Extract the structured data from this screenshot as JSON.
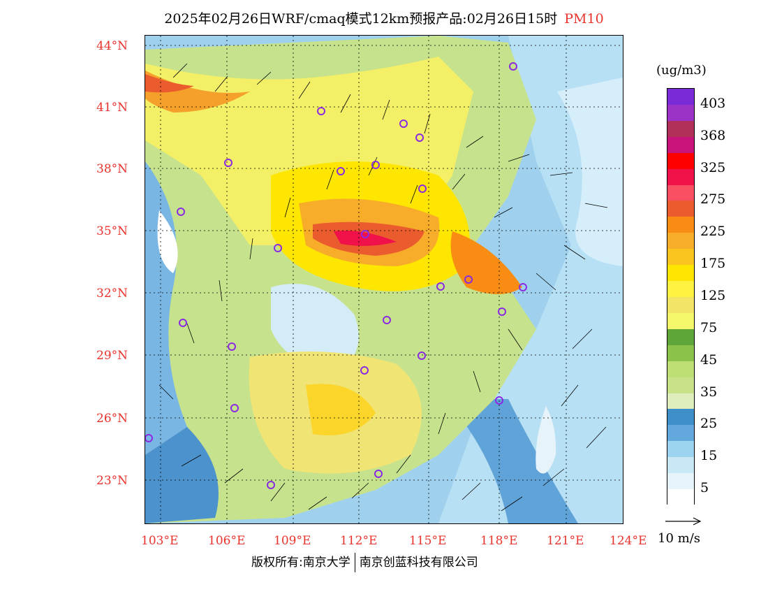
{
  "header": {
    "title": "2025年02月26日WRF/cmaq模式12km预报产品:02月26日15时",
    "variable": "PM10"
  },
  "map": {
    "lat_labels": [
      "44°N",
      "41°N",
      "38°N",
      "35°N",
      "32°N",
      "29°N",
      "26°N",
      "23°N"
    ],
    "lon_labels": [
      "103°E",
      "106°E",
      "109°E",
      "112°E",
      "115°E",
      "118°E",
      "121°E",
      "124°E"
    ],
    "city_marker_color": "#8a2be2",
    "city_markers_count": 25
  },
  "legend": {
    "unit": "(ug/m3)",
    "labels": [
      "403",
      "368",
      "325",
      "275",
      "225",
      "175",
      "125",
      "75",
      "45",
      "35",
      "25",
      "15",
      "5"
    ],
    "colors": [
      "#7a2ad6",
      "#9b33c9",
      "#b0305a",
      "#c8147a",
      "#ff0000",
      "#f0104a",
      "#fa4e63",
      "#ea5b2e",
      "#f98c12",
      "#f8ad2a",
      "#fbc520",
      "#fee600",
      "#fff240",
      "#f2e466",
      "#f5f76b",
      "#5fa63a",
      "#8bc34a",
      "#bddf73",
      "#c8e28a",
      "#deeebd",
      "#3e8fc7",
      "#62a8dc",
      "#9cd3f1",
      "#c9e8f6",
      "#e6f4fa",
      "#ffffff"
    ],
    "wind_ref_label": "10 m/s"
  },
  "footer": {
    "copyright_left": "版权所有:南京大学",
    "copyright_right": "南京创蓝科技有限公司"
  }
}
